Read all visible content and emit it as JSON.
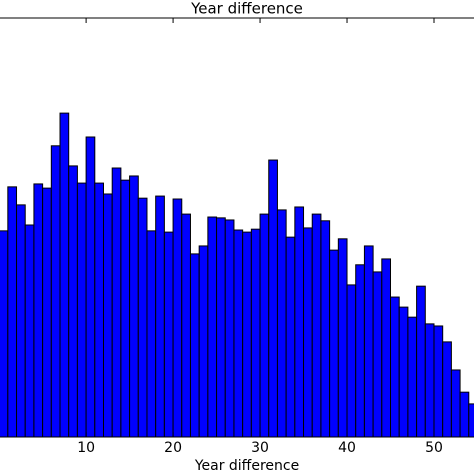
{
  "chart_data": {
    "type": "histogram",
    "title": "Year difference",
    "x_label": "Year difference",
    "bins": [
      0,
      1,
      2,
      3,
      4,
      5,
      6,
      7,
      8,
      9,
      10,
      11,
      12,
      13,
      14,
      15,
      16,
      17,
      18,
      19,
      20,
      21,
      22,
      23,
      24,
      25,
      26,
      27,
      28,
      29,
      30,
      31,
      32,
      33,
      34,
      35,
      36,
      37,
      38,
      39,
      40,
      41,
      42,
      43,
      44,
      45,
      46,
      47,
      48,
      49,
      50,
      51,
      52,
      53,
      54,
      55
    ],
    "values": [
      49.2,
      59.7,
      55.4,
      50.6,
      60.4,
      59.4,
      69.5,
      77.3,
      64.7,
      60.6,
      71.6,
      60.6,
      58.0,
      64.2,
      61.3,
      62.3,
      57.0,
      49.2,
      57.5,
      48.9,
      56.8,
      53.2,
      43.7,
      45.6,
      52.5,
      52.3,
      51.8,
      49.4,
      48.9,
      49.6,
      53.2,
      66.1,
      54.2,
      47.7,
      54.9,
      49.9,
      53.2,
      51.6,
      44.6,
      47.3,
      36.3,
      41.1,
      45.6,
      39.4,
      42.5,
      33.4,
      31.0,
      28.6,
      36.0,
      27.0,
      26.5,
      22.7,
      16.0,
      10.7,
      7.9
    ],
    "color": "#0000ff",
    "xlim": [
      0.1,
      54.6
    ],
    "xticks": [
      10,
      20,
      30,
      40,
      50
    ],
    "ylim": [
      0,
      100
    ]
  }
}
